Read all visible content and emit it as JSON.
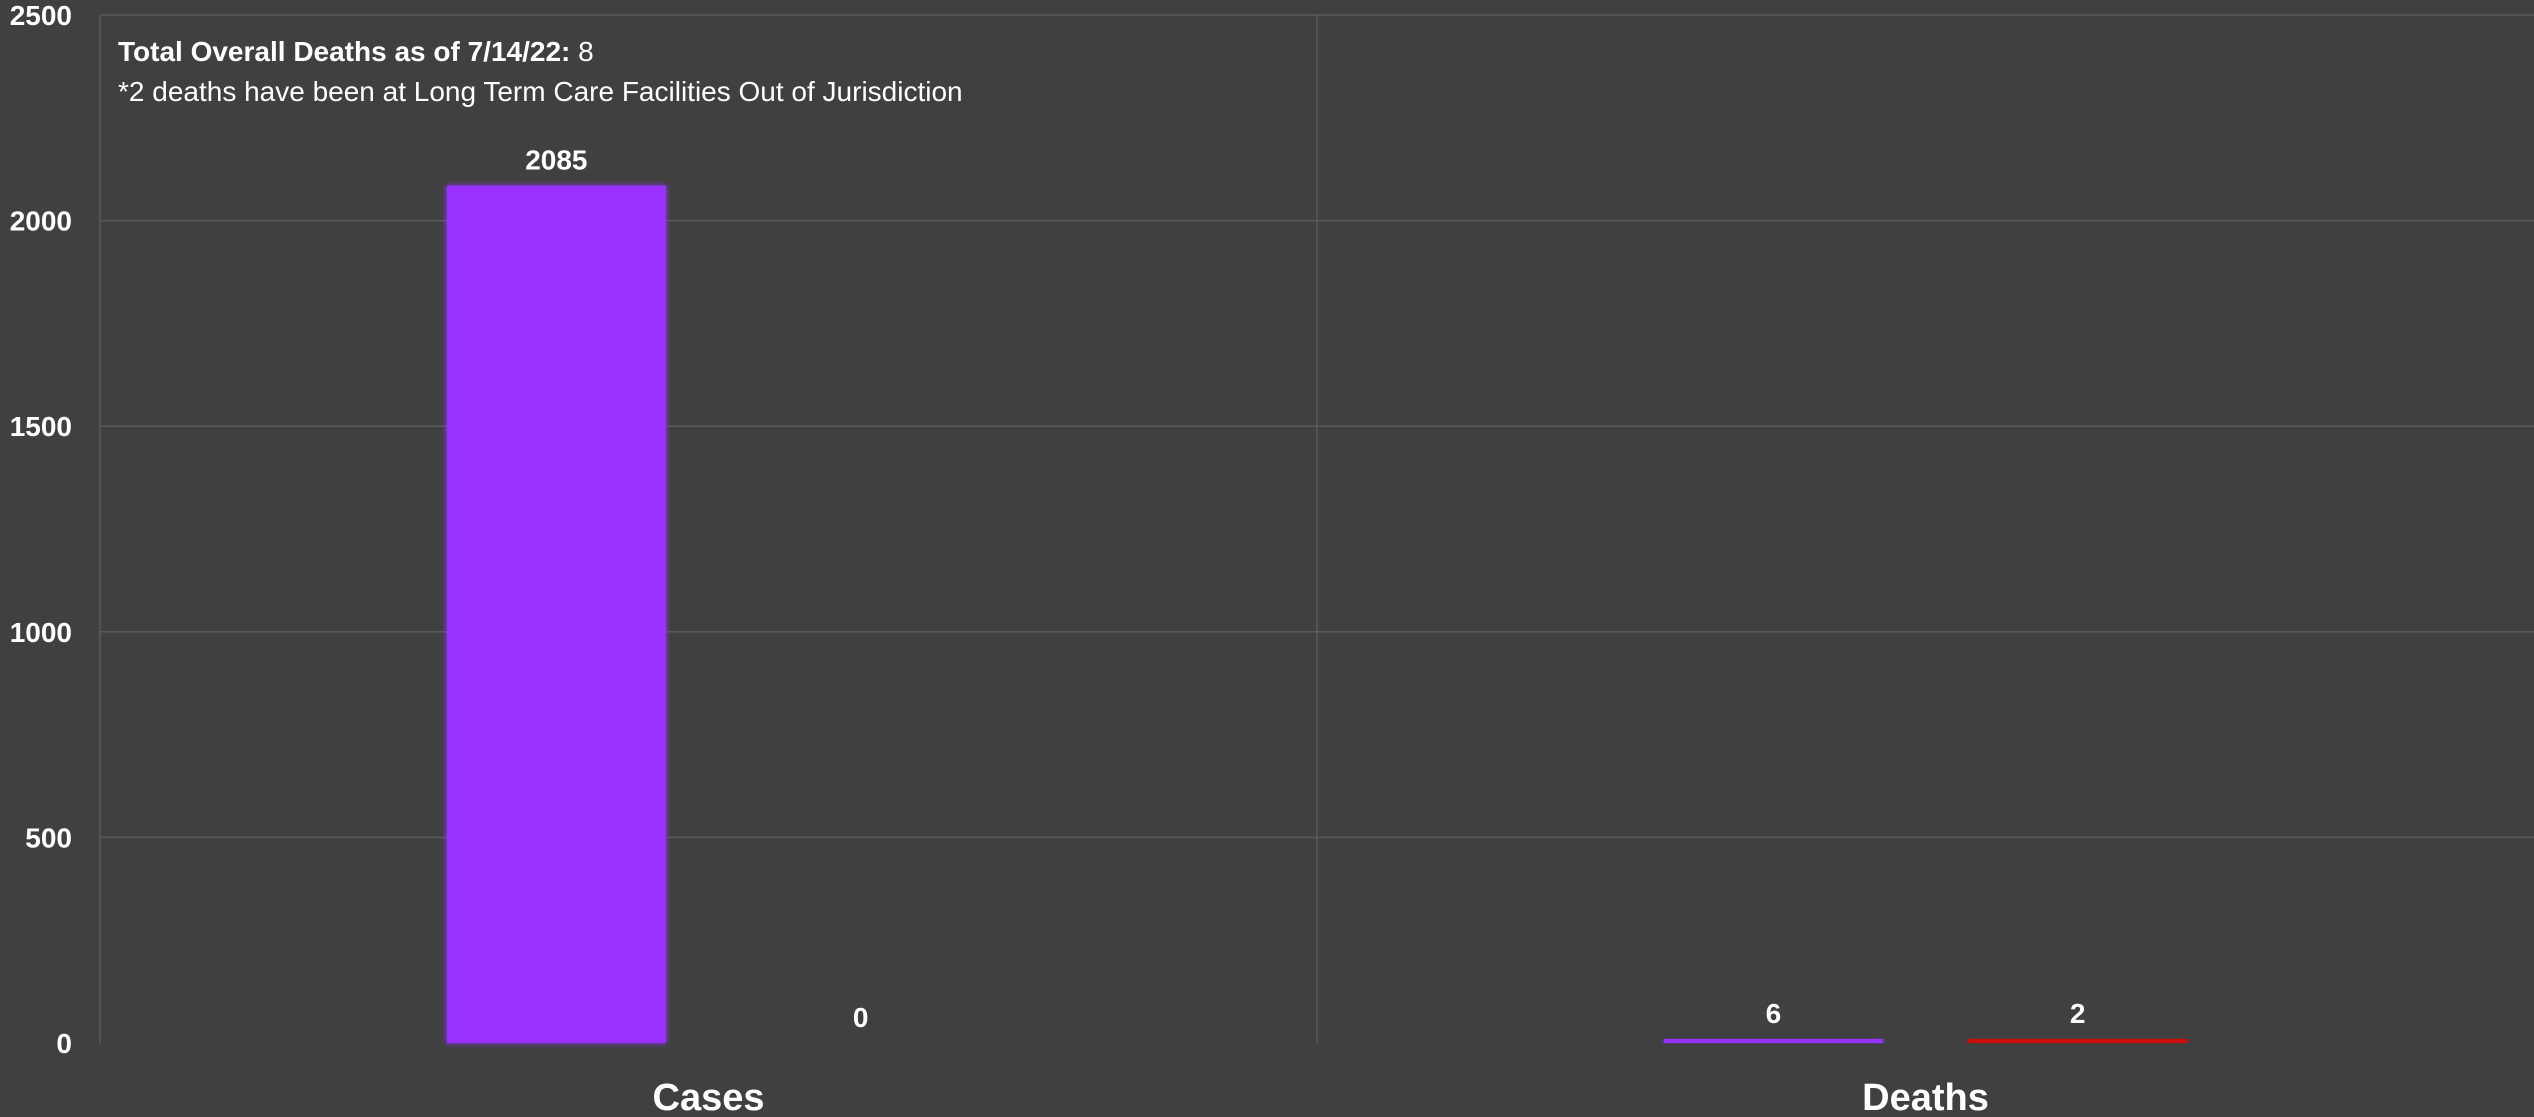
{
  "annotation": {
    "label": "Total Overall Deaths as of 7/14/22:",
    "value": "8",
    "note": "*2 deaths have been at Long Term Care Facilities Out of Jurisdiction"
  },
  "chart_data": {
    "type": "bar",
    "categories": [
      "Cases",
      "Deaths"
    ],
    "series": [
      {
        "values": [
          2085,
          6
        ],
        "color": "#9933ff"
      },
      {
        "values": [
          0,
          2
        ],
        "color": "#cc1111"
      }
    ],
    "data_labels": [
      [
        "2085",
        "6"
      ],
      [
        "0",
        "2"
      ]
    ],
    "ylim": [
      0,
      2500
    ],
    "yticks": [
      0,
      500,
      1000,
      1500,
      2000,
      2500
    ],
    "grid": true,
    "legend": "none",
    "title": "",
    "xlabel": "",
    "ylabel": ""
  },
  "colors": {
    "background": "#404040",
    "gridline": "#5a5a5a",
    "text": "#ffffff"
  }
}
